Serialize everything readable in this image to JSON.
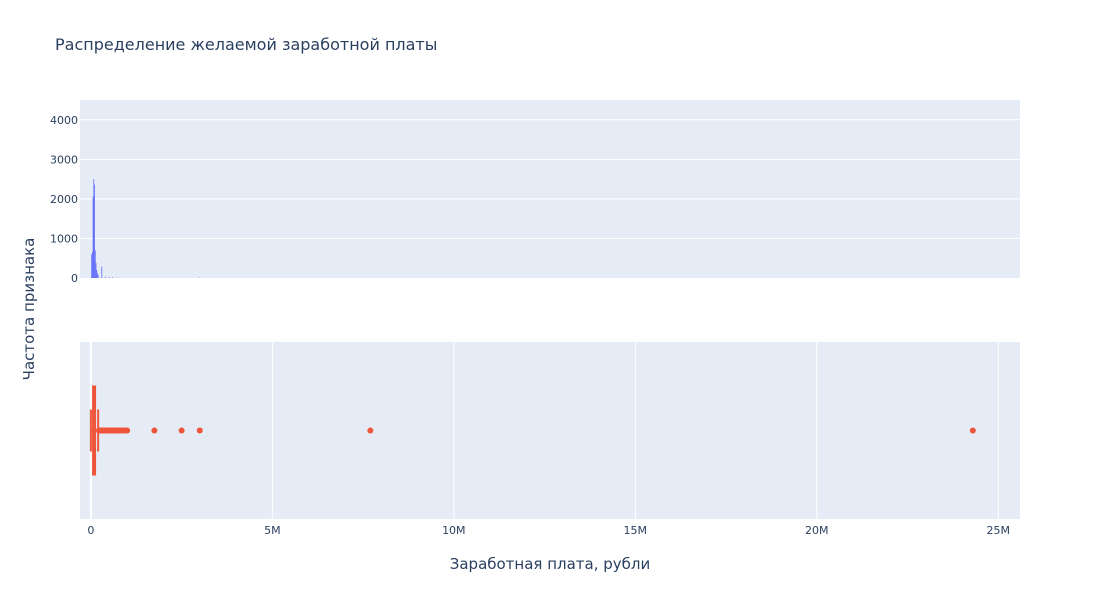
{
  "chart_data": [
    {
      "type": "histogram",
      "title": "Распределение желаемой заработной платы",
      "ylabel": "Частота признака",
      "xlim": [
        -300000,
        25600000
      ],
      "ylim": [
        0,
        4500
      ],
      "y_ticks": [
        "0",
        "1000",
        "2000",
        "3000",
        "4000"
      ],
      "y_tick_values": [
        0,
        1000,
        2000,
        3000,
        4000
      ],
      "color": "#636efa",
      "grid": true,
      "bins": [
        {
          "x": 20000,
          "y": 600
        },
        {
          "x": 40000,
          "y": 660
        },
        {
          "x": 60000,
          "y": 2060
        },
        {
          "x": 80000,
          "y": 2500
        },
        {
          "x": 100000,
          "y": 2360
        },
        {
          "x": 120000,
          "y": 700
        },
        {
          "x": 140000,
          "y": 380
        },
        {
          "x": 160000,
          "y": 200
        },
        {
          "x": 180000,
          "y": 120
        },
        {
          "x": 200000,
          "y": 80
        },
        {
          "x": 300000,
          "y": 290
        },
        {
          "x": 400000,
          "y": 30
        },
        {
          "x": 500000,
          "y": 25
        },
        {
          "x": 600000,
          "y": 20
        },
        {
          "x": 700000,
          "y": 10
        },
        {
          "x": 800000,
          "y": 8
        },
        {
          "x": 3000000,
          "y": 15
        }
      ]
    },
    {
      "type": "box",
      "xlabel": "Заработная плата, рубли",
      "xlim": [
        -300000,
        25600000
      ],
      "x_ticks": [
        "0",
        "5M",
        "10M",
        "15M",
        "20M",
        "25M"
      ],
      "x_tick_values": [
        0,
        5000000,
        10000000,
        15000000,
        20000000,
        25000000
      ],
      "color": "#ef553b",
      "grid": true,
      "box": {
        "lower_fence": 0,
        "q1": 60000,
        "median": 80000,
        "q3": 100000,
        "upper_fence": 200000
      },
      "outliers": [
        220000,
        250000,
        280000,
        300000,
        330000,
        350000,
        380000,
        400000,
        420000,
        450000,
        480000,
        500000,
        530000,
        550000,
        580000,
        600000,
        630000,
        650000,
        680000,
        700000,
        720000,
        750000,
        780000,
        800000,
        850000,
        900000,
        950000,
        1000000,
        1750000,
        2500000,
        3000000,
        7700000,
        24300000
      ]
    }
  ]
}
